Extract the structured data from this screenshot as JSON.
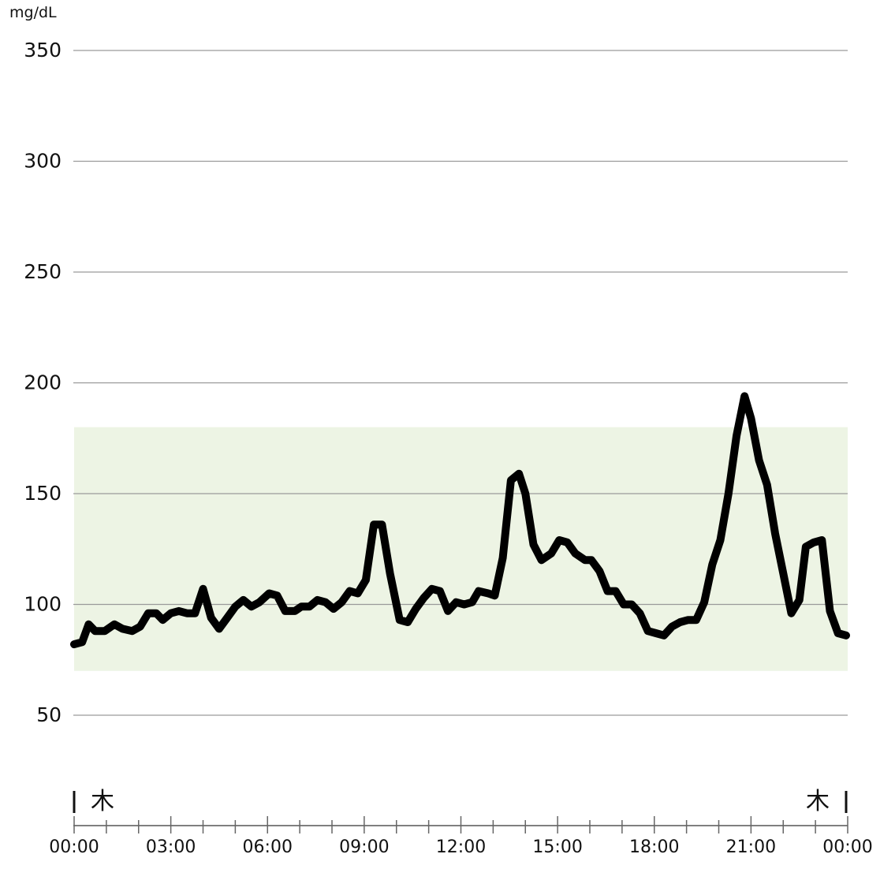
{
  "chart_data": {
    "type": "line",
    "ylabel": "mg/dL",
    "ylim": [
      0,
      350
    ],
    "y_ticks": [
      50,
      100,
      150,
      200,
      250,
      300,
      350
    ],
    "y_tick_labels": [
      "50",
      "100",
      "150",
      "200",
      "250",
      "300",
      "350"
    ],
    "x_unit": "hours",
    "xlim": [
      0,
      24
    ],
    "x_ticks": [
      0,
      3,
      6,
      9,
      12,
      15,
      18,
      21,
      24
    ],
    "x_tick_labels": [
      "00:00",
      "03:00",
      "06:00",
      "09:00",
      "12:00",
      "15:00",
      "18:00",
      "21:00",
      "00:00"
    ],
    "day_labels": {
      "start": "木",
      "end": "木"
    },
    "target_range": {
      "low": 70,
      "high": 180,
      "color": "#edf4e4"
    },
    "grid": true,
    "line_color": "#000000",
    "x": [
      0.0,
      0.25,
      0.45,
      0.65,
      0.95,
      1.25,
      1.5,
      1.8,
      2.05,
      2.3,
      2.55,
      2.75,
      3.0,
      3.25,
      3.5,
      3.75,
      4.0,
      4.25,
      4.5,
      4.75,
      5.0,
      5.25,
      5.5,
      5.75,
      6.05,
      6.3,
      6.55,
      6.85,
      7.05,
      7.3,
      7.55,
      7.8,
      8.05,
      8.3,
      8.55,
      8.8,
      9.05,
      9.3,
      9.55,
      9.8,
      10.1,
      10.35,
      10.6,
      10.85,
      11.1,
      11.35,
      11.6,
      11.85,
      12.1,
      12.35,
      12.55,
      12.85,
      13.05,
      13.3,
      13.55,
      13.8,
      14.0,
      14.25,
      14.5,
      14.8,
      15.05,
      15.3,
      15.55,
      15.85,
      16.05,
      16.3,
      16.55,
      16.8,
      17.05,
      17.3,
      17.55,
      17.8,
      18.05,
      18.3,
      18.55,
      18.8,
      19.05,
      19.3,
      19.55,
      19.8,
      20.05,
      20.3,
      20.55,
      20.8,
      21.0,
      21.25,
      21.5,
      21.75,
      22.0,
      22.25,
      22.5,
      22.7,
      22.95,
      23.2,
      23.45,
      23.7,
      23.95
    ],
    "values": [
      82,
      83,
      91,
      88,
      88,
      91,
      89,
      88,
      90,
      96,
      96,
      93,
      96,
      97,
      96,
      96,
      107,
      94,
      89,
      94,
      99,
      102,
      99,
      101,
      105,
      104,
      97,
      97,
      99,
      99,
      102,
      101,
      98,
      101,
      106,
      105,
      111,
      136,
      136,
      114,
      93,
      92,
      98,
      103,
      107,
      106,
      97,
      101,
      100,
      101,
      106,
      105,
      104,
      121,
      156,
      159,
      150,
      127,
      120,
      123,
      129,
      128,
      123,
      120,
      120,
      115,
      106,
      106,
      100,
      100,
      96,
      88,
      87,
      86,
      90,
      92,
      93,
      93,
      101,
      118,
      129,
      150,
      176,
      194,
      184,
      165,
      154,
      132,
      114,
      96,
      102,
      126,
      128,
      129,
      97,
      87,
      86
    ]
  }
}
